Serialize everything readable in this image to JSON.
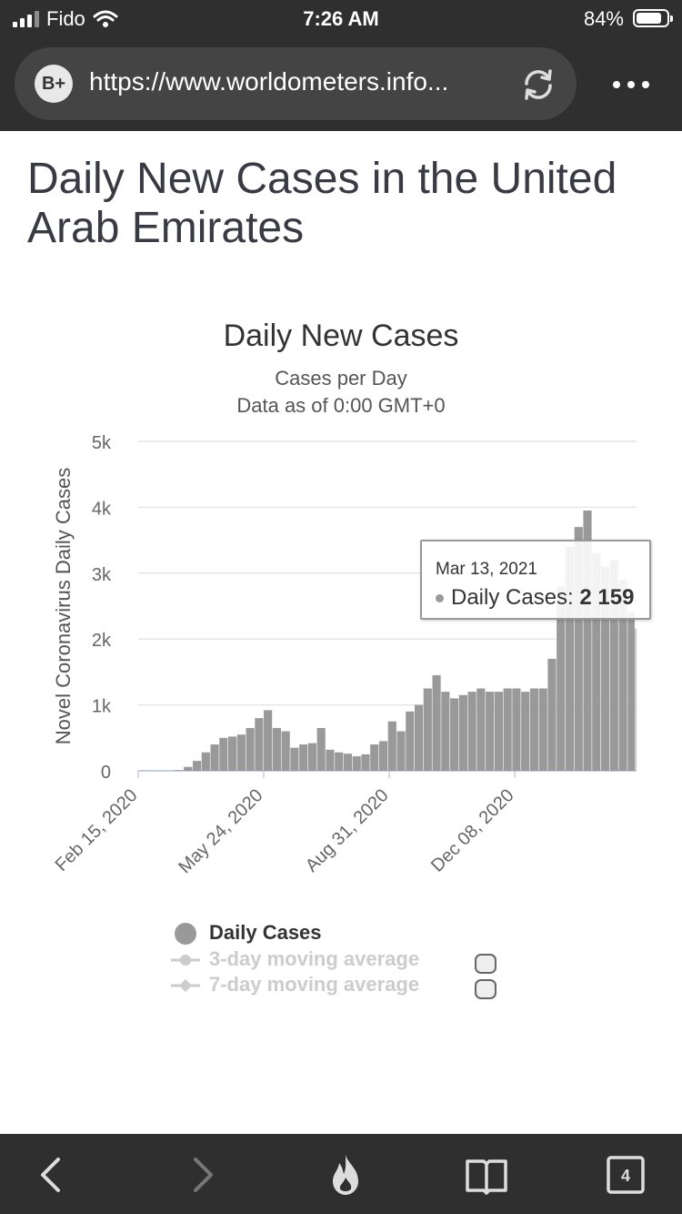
{
  "status_bar": {
    "carrier": "Fido",
    "time": "7:26 AM",
    "battery": "84%",
    "battery_level": 0.84
  },
  "browser": {
    "badge": "B+",
    "url": "https://www.worldometers.info...",
    "tabs_count": "4"
  },
  "page": {
    "title": "Daily New Cases in the United Arab Emirates"
  },
  "icons": [
    "signal-icon",
    "wifi-icon",
    "battery-icon",
    "reload-icon",
    "more-icon",
    "back-icon",
    "forward-icon",
    "flame-icon",
    "bookmarks-icon",
    "tabs-icon"
  ],
  "chart_data": {
    "type": "bar",
    "title": "Daily New Cases",
    "subtitle": [
      "Cases per Day",
      "Data as of 0:00 GMT+0"
    ],
    "ylabel": "Novel Coronavirus Daily Cases",
    "xlabel": "",
    "ylim": [
      0,
      5000
    ],
    "ytick_labels": [
      "0",
      "1k",
      "2k",
      "3k",
      "4k",
      "5k"
    ],
    "xtick_labels": [
      "Feb 15, 2020",
      "May 24, 2020",
      "Aug 31, 2020",
      "Dec 08, 2020"
    ],
    "date_range": [
      "2020-02-15",
      "2021-03-13"
    ],
    "bar_color": "#999999",
    "grid": true,
    "series": [
      {
        "name": "Daily Cases",
        "points": [
          [
            "2020-03-15",
            10
          ],
          [
            "2020-03-22",
            60
          ],
          [
            "2020-03-29",
            150
          ],
          [
            "2020-04-05",
            280
          ],
          [
            "2020-04-12",
            400
          ],
          [
            "2020-04-19",
            500
          ],
          [
            "2020-04-26",
            520
          ],
          [
            "2020-05-03",
            550
          ],
          [
            "2020-05-10",
            650
          ],
          [
            "2020-05-17",
            800
          ],
          [
            "2020-05-24",
            920
          ],
          [
            "2020-05-31",
            650
          ],
          [
            "2020-06-07",
            600
          ],
          [
            "2020-06-14",
            350
          ],
          [
            "2020-06-21",
            400
          ],
          [
            "2020-06-28",
            420
          ],
          [
            "2020-07-05",
            650
          ],
          [
            "2020-07-12",
            320
          ],
          [
            "2020-07-19",
            280
          ],
          [
            "2020-07-26",
            260
          ],
          [
            "2020-08-02",
            220
          ],
          [
            "2020-08-09",
            250
          ],
          [
            "2020-08-16",
            400
          ],
          [
            "2020-08-23",
            450
          ],
          [
            "2020-08-30",
            750
          ],
          [
            "2020-09-06",
            600
          ],
          [
            "2020-09-13",
            900
          ],
          [
            "2020-09-20",
            1000
          ],
          [
            "2020-09-27",
            1250
          ],
          [
            "2020-10-04",
            1450
          ],
          [
            "2020-10-11",
            1200
          ],
          [
            "2020-10-18",
            1100
          ],
          [
            "2020-10-25",
            1150
          ],
          [
            "2020-11-01",
            1200
          ],
          [
            "2020-11-08",
            1250
          ],
          [
            "2020-11-15",
            1200
          ],
          [
            "2020-11-22",
            1200
          ],
          [
            "2020-11-29",
            1250
          ],
          [
            "2020-12-06",
            1250
          ],
          [
            "2020-12-13",
            1200
          ],
          [
            "2020-12-20",
            1250
          ],
          [
            "2020-12-27",
            1250
          ],
          [
            "2021-01-03",
            1700
          ],
          [
            "2021-01-10",
            2800
          ],
          [
            "2021-01-17",
            3400
          ],
          [
            "2021-01-24",
            3700
          ],
          [
            "2021-01-31",
            3950
          ],
          [
            "2021-02-07",
            3300
          ],
          [
            "2021-02-14",
            3100
          ],
          [
            "2021-02-21",
            3200
          ],
          [
            "2021-02-28",
            2900
          ],
          [
            "2021-03-07",
            2400
          ],
          [
            "2021-03-13",
            2159
          ]
        ]
      },
      {
        "name": "3-day moving average",
        "visible": false
      },
      {
        "name": "7-day moving average",
        "visible": false
      }
    ],
    "tooltip": {
      "date": "Mar 13, 2021",
      "label": "Daily Cases: ",
      "value": "2 159"
    }
  }
}
